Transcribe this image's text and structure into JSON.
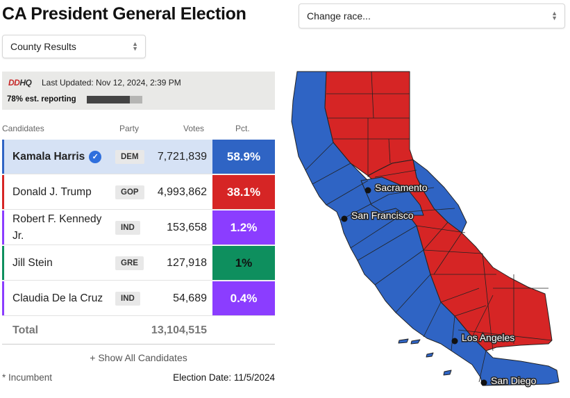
{
  "header": {
    "title": "CA President General Election"
  },
  "selects": {
    "view": "County Results",
    "race": "Change race..."
  },
  "status": {
    "logo_prefix": "DD",
    "logo_suffix": "HQ",
    "last_updated": "Last Updated: Nov 12, 2024, 2:39 PM",
    "reporting": "78% est. reporting",
    "reporting_fraction": 0.78
  },
  "table": {
    "headers": {
      "candidates": "Candidates",
      "party": "Party",
      "votes": "Votes",
      "pct": "Pct."
    },
    "rows": [
      {
        "name": "Kamala Harris",
        "party": "DEM",
        "votes": "7,721,839",
        "pct": "58.9%",
        "color": "#2f64c4",
        "winner": true
      },
      {
        "name": "Donald J. Trump",
        "party": "GOP",
        "votes": "4,993,862",
        "pct": "38.1%",
        "color": "#d62525",
        "winner": false
      },
      {
        "name": "Robert F. Kennedy Jr.",
        "party": "IND",
        "votes": "153,658",
        "pct": "1.2%",
        "color": "#8b3dff",
        "winner": false
      },
      {
        "name": "Jill Stein",
        "party": "GRE",
        "votes": "127,918",
        "pct": "1%",
        "color": "#0e8f5e",
        "winner": false
      },
      {
        "name": "Claudia De la Cruz",
        "party": "IND",
        "votes": "54,689",
        "pct": "0.4%",
        "color": "#8b3dff",
        "winner": false
      }
    ],
    "total_label": "Total",
    "total_votes": "13,104,515"
  },
  "footer": {
    "show_all": "+ Show All Candidates",
    "incumbent": "* Incumbent",
    "election_date": "Election Date: 11/5/2024"
  },
  "map": {
    "colors": {
      "dem": "#2f64c4",
      "gop": "#d62525"
    },
    "cities": [
      "Sacramento",
      "San Francisco",
      "Los Angeles",
      "San Diego"
    ]
  }
}
